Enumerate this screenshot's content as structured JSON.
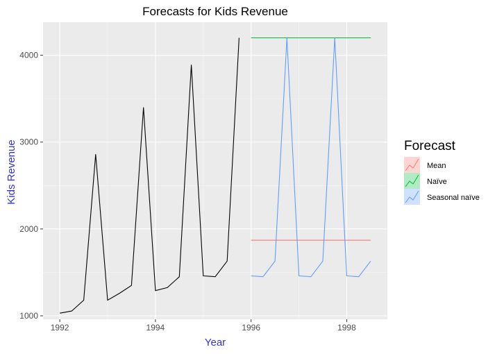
{
  "chart_data": {
    "type": "line",
    "title": "Forecasts for Kids Revenue",
    "xlabel": "Year",
    "ylabel": "Kids Revenue",
    "xlim": [
      1991.65,
      1998.85
    ],
    "ylim": [
      960,
      4380
    ],
    "x_ticks": [
      1992,
      1994,
      1996,
      1998
    ],
    "y_ticks": [
      1000,
      2000,
      3000,
      4000
    ],
    "x_tick_labels": [
      "1992",
      "1994",
      "1996",
      "1998"
    ],
    "y_tick_labels": [
      "1000",
      "2000",
      "3000",
      "4000"
    ],
    "grid": true,
    "legend_position": "right",
    "history": {
      "x": [
        1992.0,
        1992.25,
        1992.5,
        1992.75,
        1993.0,
        1993.25,
        1993.5,
        1993.75,
        1994.0,
        1994.25,
        1994.5,
        1994.75,
        1995.0,
        1995.25,
        1995.5,
        1995.75
      ],
      "y": [
        1030,
        1055,
        1180,
        2860,
        1180,
        1260,
        1350,
        3400,
        1290,
        1325,
        1450,
        3890,
        1460,
        1450,
        1630,
        4200
      ],
      "color": "#000000"
    },
    "legend_title": "Forecast",
    "series": [
      {
        "name": "Mean",
        "color": "#F8766D",
        "x": [
          1996.0,
          1996.25,
          1996.5,
          1996.75,
          1997.0,
          1997.25,
          1997.5,
          1997.75,
          1998.0,
          1998.25,
          1998.5
        ],
        "y": [
          1870,
          1870,
          1870,
          1870,
          1870,
          1870,
          1870,
          1870,
          1870,
          1870,
          1870
        ]
      },
      {
        "name": "Naïve",
        "color": "#00BA38",
        "x": [
          1996.0,
          1996.25,
          1996.5,
          1996.75,
          1997.0,
          1997.25,
          1997.5,
          1997.75,
          1998.0,
          1998.25,
          1998.5
        ],
        "y": [
          4200,
          4200,
          4200,
          4200,
          4200,
          4200,
          4200,
          4200,
          4200,
          4200,
          4200
        ]
      },
      {
        "name": "Seasonal naïve",
        "color": "#619CFF",
        "x": [
          1996.0,
          1996.25,
          1996.5,
          1996.75,
          1997.0,
          1997.25,
          1997.5,
          1997.75,
          1998.0,
          1998.25,
          1998.5
        ],
        "y": [
          1460,
          1450,
          1630,
          4200,
          1460,
          1450,
          1630,
          4200,
          1460,
          1450,
          1630
        ]
      }
    ],
    "colors": {
      "panel_background": "#EBEBEB",
      "gridline": "#FFFFFF",
      "axis_label": "#3333CC",
      "tick_text": "#4D4D4D"
    }
  }
}
